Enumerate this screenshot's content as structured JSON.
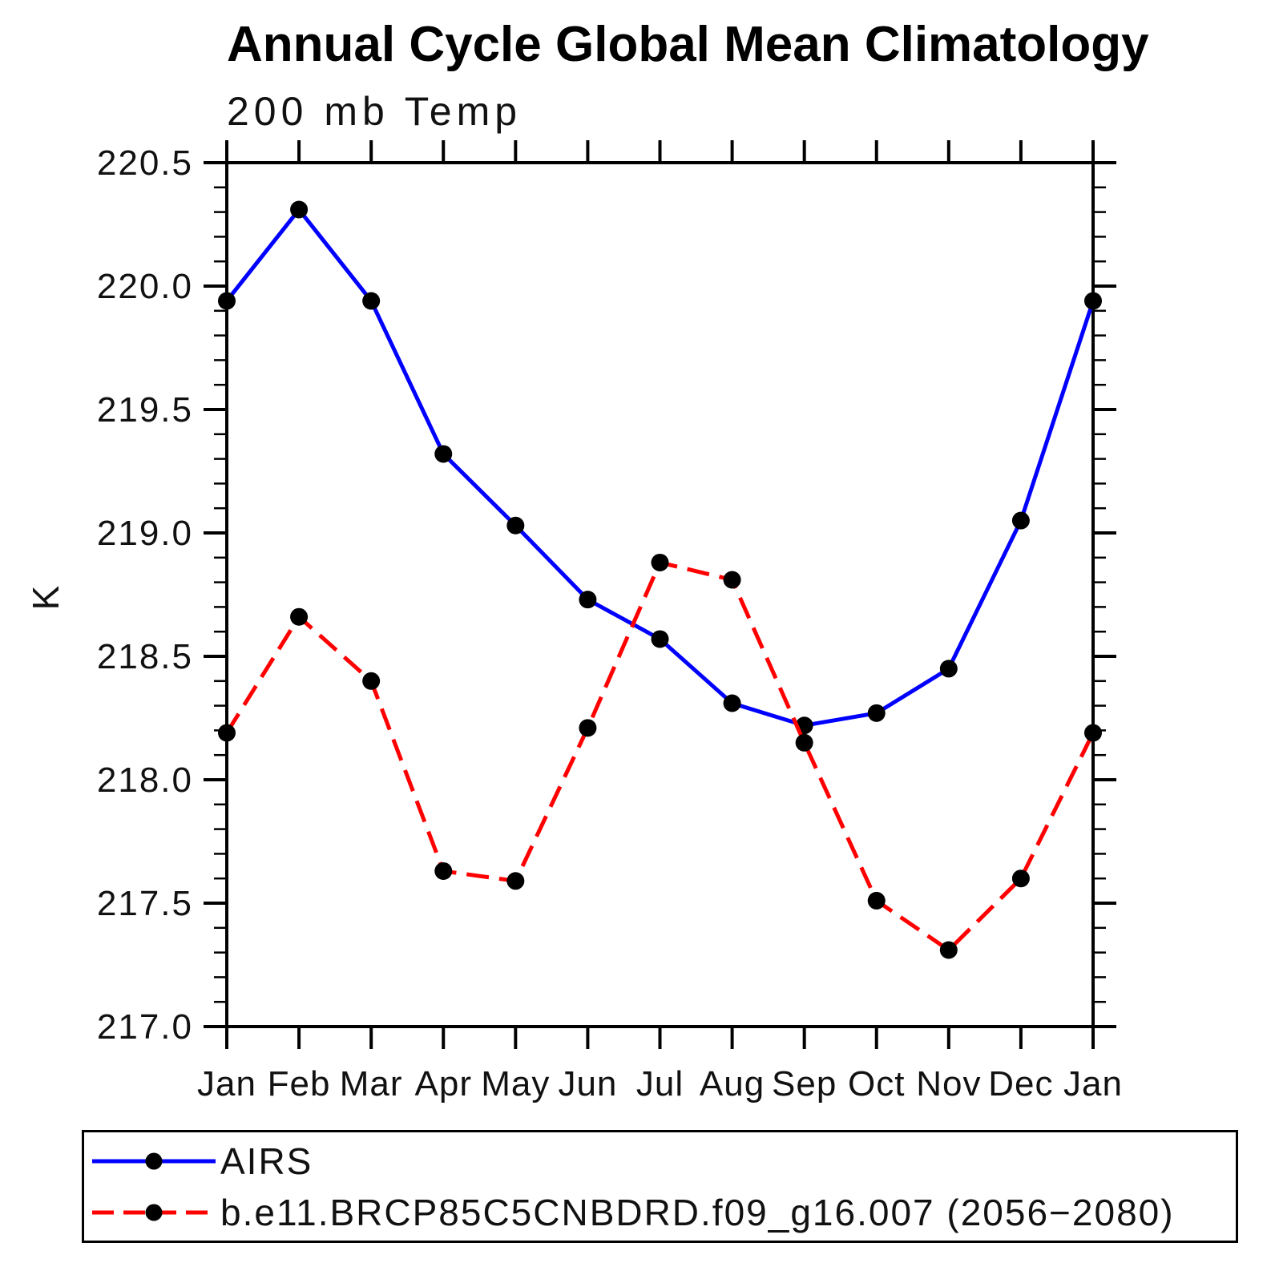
{
  "chart_data": {
    "type": "line",
    "title": "Annual Cycle Global Mean Climatology",
    "subtitle": "200 mb Temp",
    "ylabel": "K",
    "xlabel": "",
    "x_categories": [
      "Jan",
      "Feb",
      "Mar",
      "Apr",
      "May",
      "Jun",
      "Jul",
      "Aug",
      "Sep",
      "Oct",
      "Nov",
      "Dec",
      "Jan"
    ],
    "ylim": [
      217.0,
      220.5
    ],
    "y_tick_values": [
      217.0,
      217.5,
      218.0,
      218.5,
      219.0,
      219.5,
      220.0,
      220.5
    ],
    "y_tick_labels": [
      "217.0",
      "217.5",
      "218.0",
      "218.5",
      "219.0",
      "219.5",
      "220.0",
      "220.5"
    ],
    "y_minor_step": 0.1,
    "grid": false,
    "legend_position": "bottom",
    "marker": {
      "shape": "circle",
      "color": "#000000",
      "radius": 11
    },
    "series": [
      {
        "name": "AIRS",
        "color": "#0000ff",
        "style": "solid",
        "values": [
          219.94,
          220.31,
          219.94,
          219.32,
          219.03,
          218.73,
          218.57,
          218.31,
          218.22,
          218.27,
          218.45,
          219.05,
          219.94
        ]
      },
      {
        "name": "b.e11.BRCP85C5CNBDRD.f09_g16.007 (2056−2080)",
        "color": "#ff0000",
        "style": "dashed",
        "values": [
          218.19,
          218.66,
          218.4,
          217.63,
          217.59,
          218.21,
          218.88,
          218.81,
          218.15,
          217.51,
          217.31,
          217.6,
          218.19
        ]
      }
    ]
  }
}
